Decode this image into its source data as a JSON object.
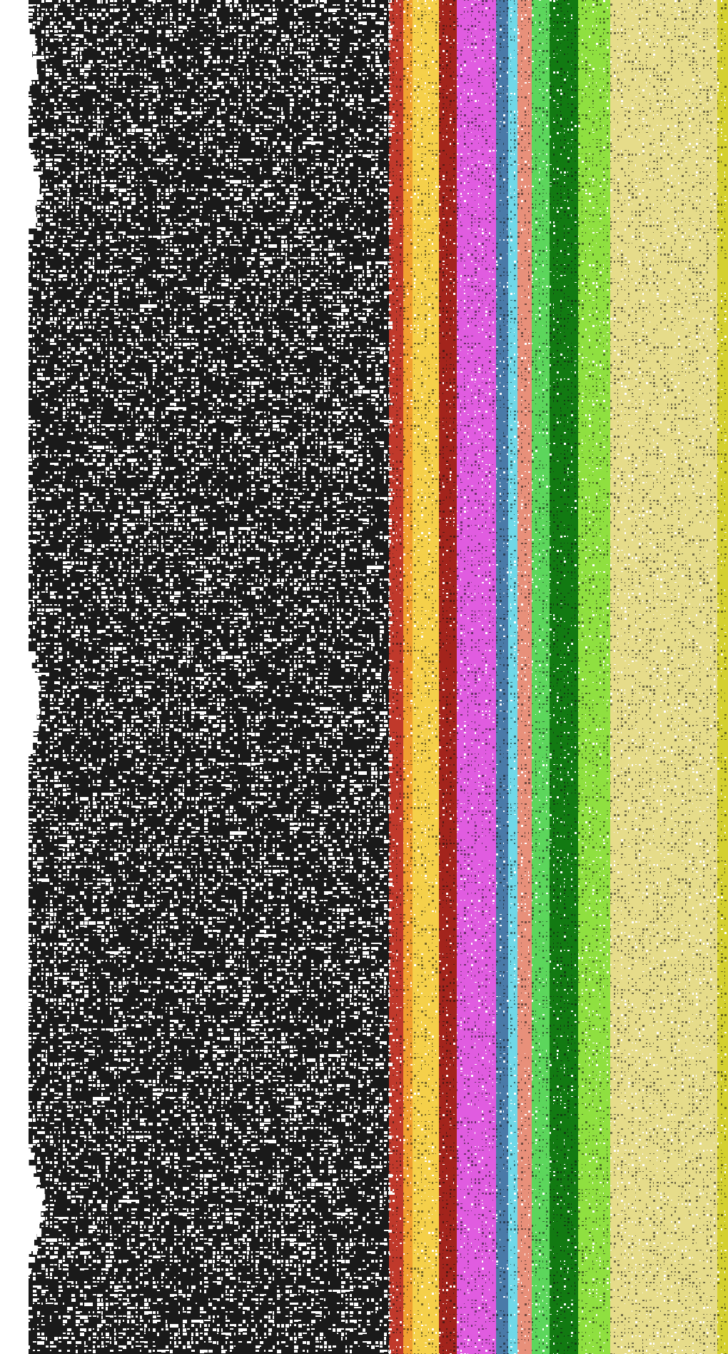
{
  "image": {
    "background": "#ffffff",
    "noise_ink": "#111111",
    "bands": [
      {
        "name": "white-edge",
        "color": "#ffffff"
      },
      {
        "name": "black-white-noise",
        "color": "#1a1a1a"
      },
      {
        "name": "red-stripe",
        "color": "#c0392b"
      },
      {
        "name": "orange-stripe",
        "color": "#f0a030"
      },
      {
        "name": "yellow-stripe",
        "color": "#f5d04a"
      },
      {
        "name": "dark-red-stripe",
        "color": "#a3241c"
      },
      {
        "name": "magenta-stripe",
        "color": "#e05ce0"
      },
      {
        "name": "blue-stripe",
        "color": "#4a7aa8"
      },
      {
        "name": "cyan-stripe",
        "color": "#6fd8e8"
      },
      {
        "name": "salmon-stripe",
        "color": "#e8907a"
      },
      {
        "name": "light-green-stripe",
        "color": "#5cd65c"
      },
      {
        "name": "dark-green-stripe",
        "color": "#127a12"
      },
      {
        "name": "lime-stripe",
        "color": "#8fe040"
      },
      {
        "name": "khaki-stripe",
        "color": "#e6dc8a"
      },
      {
        "name": "olive-yellow-edge",
        "color": "#d4d030"
      }
    ]
  }
}
